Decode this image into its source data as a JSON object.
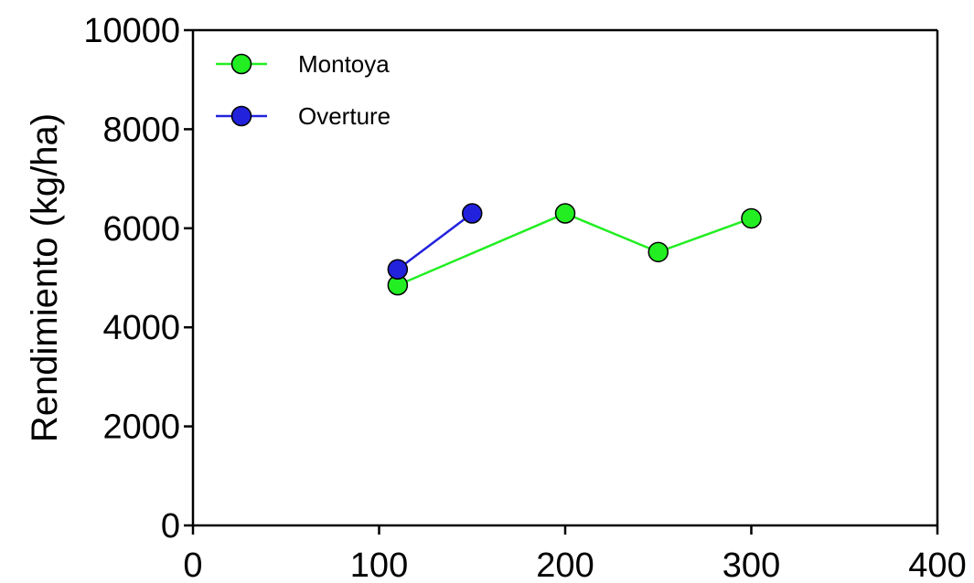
{
  "chart_data": {
    "type": "line",
    "title": "",
    "xlabel": "",
    "ylabel": "Rendimiento (kg/ha)",
    "xlim": [
      0,
      400
    ],
    "ylim": [
      0,
      10000
    ],
    "x_ticks": [
      0,
      100,
      200,
      300,
      400
    ],
    "y_ticks": [
      0,
      2000,
      4000,
      6000,
      8000,
      10000
    ],
    "grid": false,
    "legend_position": "top-left",
    "series": [
      {
        "name": "Montoya",
        "color": "#22ee22",
        "x": [
          110,
          200,
          250,
          300
        ],
        "y": [
          4850,
          6300,
          5520,
          6200
        ]
      },
      {
        "name": "Overture",
        "color": "#2222dd",
        "x": [
          110,
          150
        ],
        "y": [
          5170,
          6300
        ]
      }
    ]
  }
}
